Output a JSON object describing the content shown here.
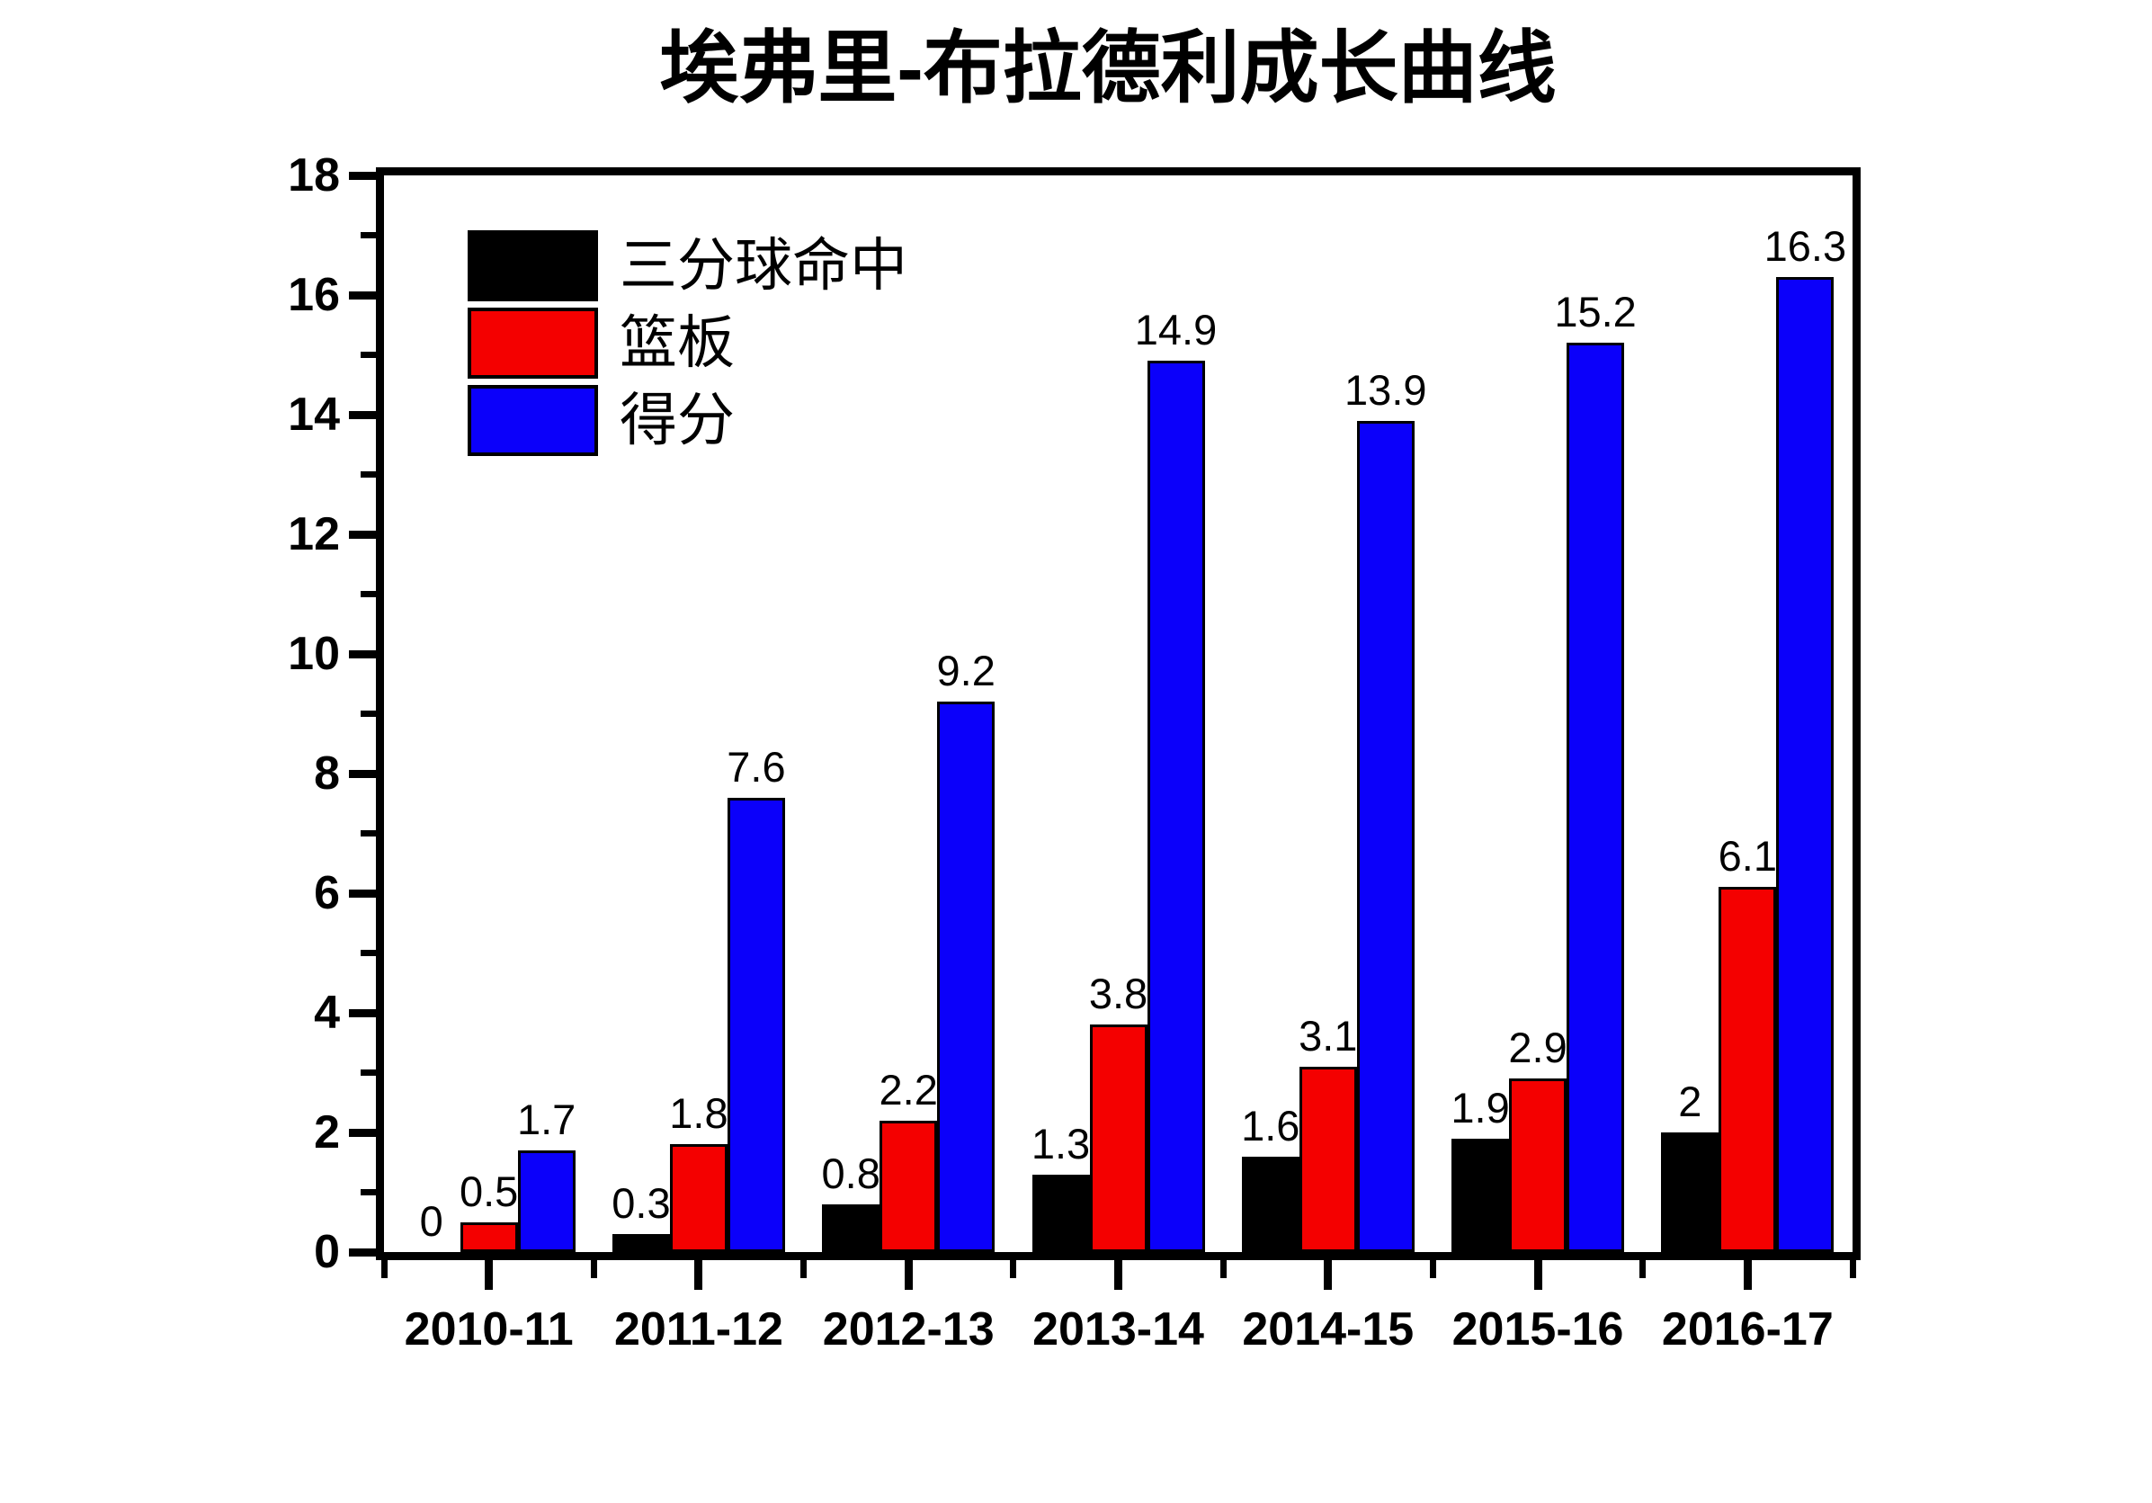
{
  "chart_data": {
    "type": "bar",
    "title": "埃弗里-布拉德利成长曲线",
    "categories": [
      "2010-11",
      "2011-12",
      "2012-13",
      "2013-14",
      "2014-15",
      "2015-16",
      "2016-17"
    ],
    "series": [
      {
        "name": "三分球命中",
        "color": "#000000",
        "values": [
          0,
          0.3,
          0.8,
          1.3,
          1.6,
          1.9,
          2
        ]
      },
      {
        "name": "篮板",
        "color": "#f40000",
        "values": [
          0.5,
          1.8,
          2.2,
          3.8,
          3.1,
          2.9,
          6.1
        ]
      },
      {
        "name": "得分",
        "color": "#0b00fa",
        "values": [
          1.7,
          7.6,
          9.2,
          14.9,
          13.9,
          15.2,
          16.3
        ]
      }
    ],
    "ylim": [
      0,
      18
    ],
    "y_major_step": 2,
    "y_minor_step": 1,
    "y_tick_labels": [
      "0",
      "2",
      "4",
      "6",
      "8",
      "10",
      "12",
      "14",
      "16",
      "18"
    ],
    "xlabel": "",
    "ylabel": "",
    "grid": false,
    "legend_position": "top-left",
    "value_labels_shown": true,
    "axis_color": "#000000",
    "background_color": "#ffffff"
  }
}
